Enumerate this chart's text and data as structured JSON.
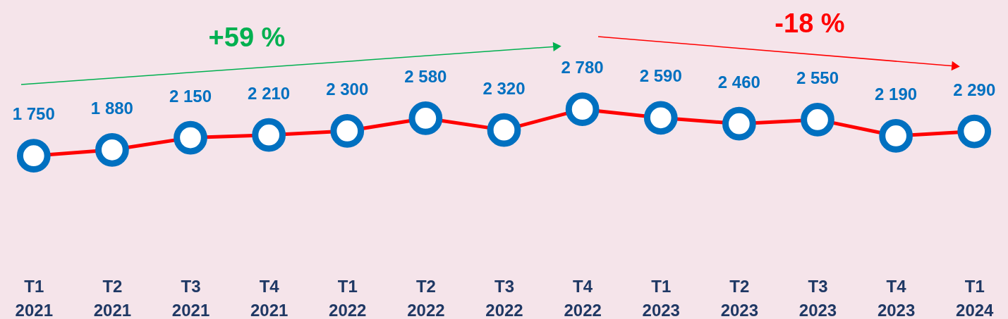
{
  "chart_data": {
    "type": "line",
    "categories": [
      "T1 2021",
      "T2 2021",
      "T3 2021",
      "T4 2021",
      "T1 2022",
      "T2 2022",
      "T3 2022",
      "T4 2022",
      "T1 2023",
      "T2 2023",
      "T3 2023",
      "T4 2023",
      "T1 2024"
    ],
    "series": [
      {
        "color": "#ff0000",
        "values": [
          1750,
          1880,
          2150,
          2210,
          2300,
          2580,
          2320,
          2780,
          2590,
          2460,
          2550,
          2190,
          2290
        ],
        "value_labels": [
          "1 750",
          "1 880",
          "2 150",
          "2 210",
          "2 300",
          "2 580",
          "2 320",
          "2 780",
          "2 590",
          "2 460",
          "2 550",
          "2 190",
          "2 290"
        ]
      }
    ],
    "marker": "circle",
    "grid": false,
    "legend": false,
    "annotations": [
      "+59 %",
      "-18 %"
    ]
  }
}
